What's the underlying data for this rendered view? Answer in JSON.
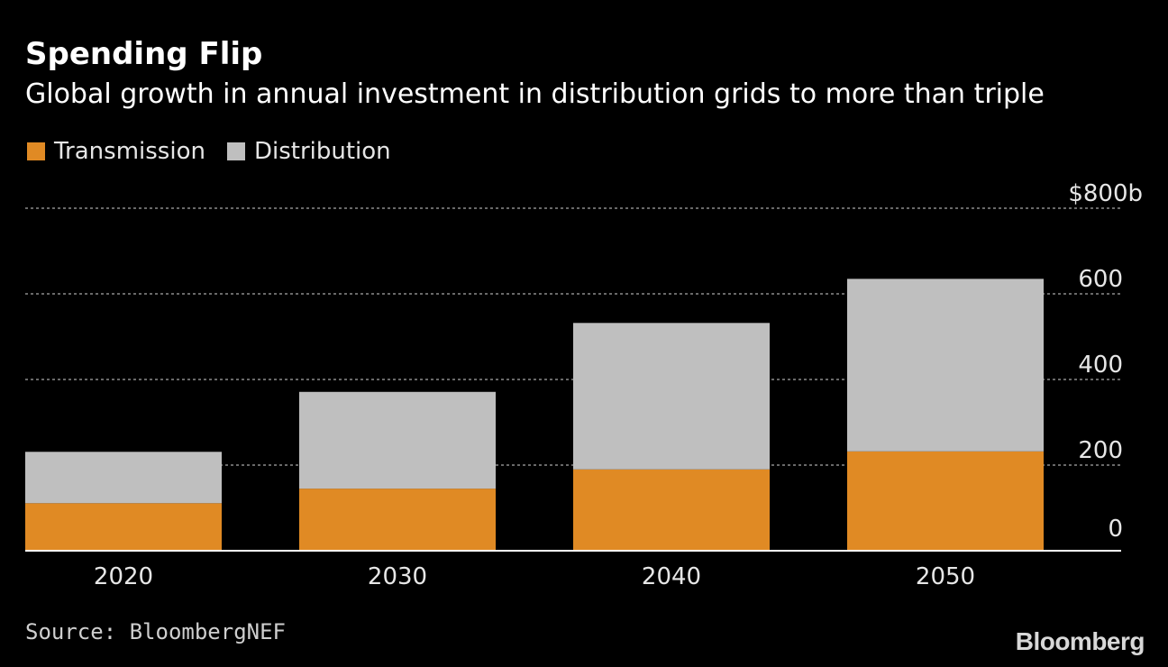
{
  "colors": {
    "background": "#000000",
    "transmission": "#e08a24",
    "distribution": "#bfbfbf",
    "grid": "#8c8c8c",
    "text": "#ffffff",
    "axis_text": "#e6e6e6"
  },
  "chart_data": {
    "type": "bar",
    "stacked": true,
    "title": "Spending Flip",
    "subtitle": "Global growth in annual investment in distribution grids to more than triple",
    "categories": [
      "2020",
      "2030",
      "2040",
      "2050"
    ],
    "series": [
      {
        "name": "Transmission",
        "values": [
          111,
          145,
          190,
          232
        ]
      },
      {
        "name": "Distribution",
        "values": [
          120,
          226,
          342,
          403
        ]
      }
    ],
    "ylim": [
      0,
      800
    ],
    "yticks": [
      0,
      200,
      400,
      600,
      800
    ],
    "ytick_labels": [
      "0",
      "200",
      "400",
      "600",
      "$800b"
    ],
    "grid": true,
    "legend_position": "top-left",
    "yaxis_position": "right"
  },
  "source": "Source: BloombergNEF",
  "logo_text": "Bloomberg"
}
